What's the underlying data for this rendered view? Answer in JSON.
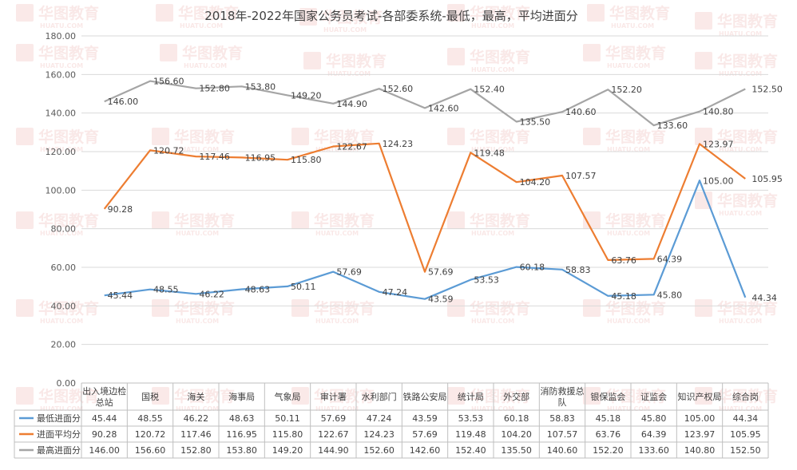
{
  "chart_data": {
    "type": "line",
    "title": "2018年-2022年国家公务员考试-各部委系统-最低，最高，平均进面分",
    "xlabel": "",
    "ylabel": "",
    "ylim": [
      0,
      180
    ],
    "yticks": [
      "0.00",
      "20.00",
      "40.00",
      "60.00",
      "80.00",
      "100.00",
      "120.00",
      "140.00",
      "160.00",
      "180.00"
    ],
    "grid": true,
    "legend_position": "bottom (data table)",
    "categories": [
      [
        "出入境边检",
        "总站"
      ],
      [
        "国税"
      ],
      [
        "海关"
      ],
      [
        "海事局"
      ],
      [
        "气象局"
      ],
      [
        "审计署"
      ],
      [
        "水利部门"
      ],
      [
        "铁路公安局"
      ],
      [
        "统计局"
      ],
      [
        "外交部"
      ],
      [
        "消防救援总",
        "队"
      ],
      [
        "银保监会"
      ],
      [
        "证监会"
      ],
      [
        "知识产权局"
      ],
      [
        "综合岗"
      ]
    ],
    "series": [
      {
        "name": "最低进面分",
        "color": "#5b9bd5",
        "values": [
          45.44,
          48.55,
          46.22,
          48.63,
          50.11,
          57.69,
          47.24,
          43.59,
          53.53,
          60.18,
          58.83,
          45.18,
          45.8,
          105.0,
          44.34
        ]
      },
      {
        "name": "进面平均分",
        "color": "#ed7d31",
        "values": [
          90.28,
          120.72,
          117.46,
          116.95,
          115.8,
          122.67,
          124.23,
          57.69,
          119.48,
          104.2,
          107.57,
          63.76,
          64.39,
          123.97,
          105.95
        ]
      },
      {
        "name": "最高进面分",
        "color": "#a5a5a5",
        "values": [
          146.0,
          156.6,
          152.8,
          153.8,
          149.2,
          144.9,
          152.6,
          142.6,
          152.4,
          135.5,
          140.6,
          152.2,
          133.6,
          140.8,
          152.5
        ]
      }
    ],
    "table_values": [
      [
        "45.44",
        "48.55",
        "46.22",
        "48.63",
        "50.11",
        "57.69",
        "47.24",
        "43.59",
        "53.53",
        "60.18",
        "58.83",
        "45.18",
        "45.80",
        "105.00",
        "44.34"
      ],
      [
        "90.28",
        "120.72",
        "117.46",
        "116.95",
        "115.80",
        "122.67",
        "124.23",
        "57.69",
        "119.48",
        "104.20",
        "107.57",
        "63.76",
        "64.39",
        "123.97",
        "105.95"
      ],
      [
        "146.00",
        "156.60",
        "152.80",
        "153.80",
        "149.20",
        "144.90",
        "152.60",
        "142.60",
        "152.40",
        "135.50",
        "140.60",
        "152.20",
        "133.60",
        "140.80",
        "152.50"
      ]
    ]
  },
  "watermark": {
    "brand": "华图教育",
    "domain": "HUATU.COM"
  }
}
